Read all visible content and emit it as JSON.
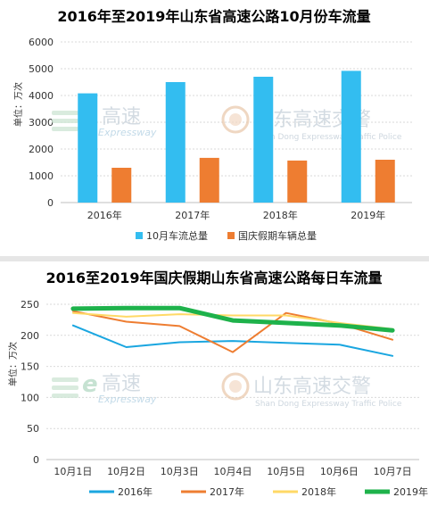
{
  "chart_data": [
    {
      "type": "bar",
      "title": "2016年至2019年山东省高速公路10月份车流量",
      "ylabel": "单位：万次",
      "categories": [
        "2016年",
        "2017年",
        "2018年",
        "2019年"
      ],
      "ylim": [
        0,
        6000
      ],
      "yticks": [
        0,
        1000,
        2000,
        3000,
        4000,
        5000,
        6000
      ],
      "grid": true,
      "legend": "bottom",
      "series": [
        {
          "name": "10月车流总量",
          "color": "#33bdf0",
          "values": [
            4080,
            4500,
            4700,
            4920
          ]
        },
        {
          "name": "国庆假期车辆总量",
          "color": "#ee7d31",
          "values": [
            1300,
            1670,
            1570,
            1600
          ]
        }
      ]
    },
    {
      "type": "line",
      "title": "2016至2019年国庆假期山东省高速公路每日车流量",
      "ylabel": "单位：万次",
      "categories": [
        "10月1日",
        "10月2日",
        "10月3日",
        "10月4日",
        "10月5日",
        "10月6日",
        "10月7日"
      ],
      "ylim": [
        0,
        250
      ],
      "yticks": [
        0,
        50,
        100,
        150,
        200,
        250
      ],
      "grid": true,
      "legend": "bottom",
      "series": [
        {
          "name": "2016年",
          "color": "#1aa6e0",
          "width": 2,
          "values": [
            216,
            181,
            189,
            191,
            188,
            185,
            167
          ]
        },
        {
          "name": "2017年",
          "color": "#ee7d31",
          "width": 2,
          "values": [
            239,
            222,
            215,
            173,
            236,
            219,
            193
          ]
        },
        {
          "name": "2018年",
          "color": "#ffd966",
          "width": 2,
          "values": [
            236,
            230,
            234,
            232,
            232,
            220,
            210
          ]
        },
        {
          "name": "2019年",
          "color": "#1eb24b",
          "width": 5,
          "values": [
            243,
            244,
            244,
            224,
            220,
            216,
            208
          ]
        }
      ]
    }
  ],
  "watermarks": {
    "left_cn": "高速",
    "left_en": "Expressway",
    "right_cn": "山东高速交警",
    "right_en": "Shan Dong Expressway Traffic Police"
  }
}
